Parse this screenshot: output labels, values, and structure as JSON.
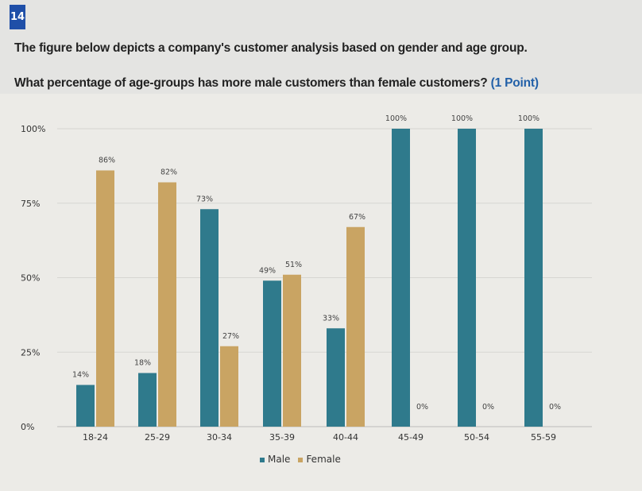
{
  "question": {
    "number": "14",
    "intro": "The figure below depicts a company's customer analysis based on gender and age group.",
    "prompt": "What percentage of age-groups has more male customers than female customers?",
    "points": "(1 Point)"
  },
  "chart_data": {
    "type": "bar",
    "categories": [
      "18-24",
      "25-29",
      "30-34",
      "35-39",
      "40-44",
      "45-49",
      "50-54",
      "55-59"
    ],
    "series": [
      {
        "name": "Male",
        "color": "#2f7a8c",
        "values": [
          14,
          18,
          73,
          49,
          33,
          100,
          100,
          100
        ],
        "labels": [
          "14%",
          "18%",
          "73%",
          "49%",
          "33%",
          "100%",
          "100%",
          "100%"
        ]
      },
      {
        "name": "Female",
        "color": "#c9a463",
        "values": [
          86,
          82,
          27,
          51,
          67,
          0,
          0,
          0
        ],
        "labels": [
          "86%",
          "82%",
          "27%",
          "51%",
          "67%",
          "0%",
          "0%",
          "0%"
        ]
      }
    ],
    "yticks": [
      "0%",
      "25%",
      "50%",
      "75%",
      "100%"
    ],
    "ylim": [
      0,
      100
    ],
    "grid": true,
    "legend": "bottom"
  }
}
